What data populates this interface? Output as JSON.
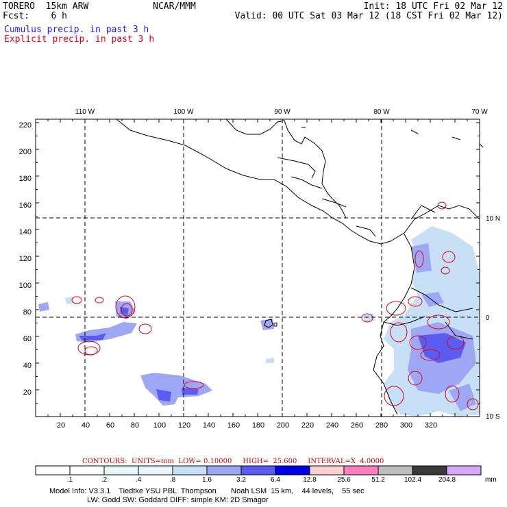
{
  "header": {
    "model": "TORERO  15km ARW",
    "org": "NCAR/MMM",
    "fcst": "Fcst:    6 h",
    "init": "Init: 18 UTC Fri 02 Mar 12",
    "valid": "Valid: 00 UTC Sat 03 Mar 12 (18 CST Fri 02 Mar 12)"
  },
  "legend": {
    "cumulus": "Cumulus precip. in past 3 h",
    "explicit": "Explicit precip. in past 3 h"
  },
  "map": {
    "x_ticks": [
      "20",
      "40",
      "60",
      "80",
      "100",
      "120",
      "140",
      "160",
      "180",
      "200",
      "220",
      "240",
      "260",
      "280",
      "300",
      "320"
    ],
    "y_ticks": [
      "20",
      "40",
      "60",
      "80",
      "100",
      "120",
      "140",
      "160",
      "180",
      "200",
      "220"
    ],
    "lon_labels": [
      "110 W",
      "100 W",
      "90 W",
      "80 W",
      "70 W"
    ],
    "lat_labels": [
      "10 N",
      "0",
      "10 S"
    ]
  },
  "contours_info": "CONTOURS:  UNITS=mm  LOW= 0.10000     HIGH=  25.600     INTERVAL=X  4.0000",
  "colorbar": {
    "labels": [
      ".1",
      ".2",
      ".4",
      ".8",
      "1.6",
      "3.2",
      "6.4",
      "12.8",
      "25.6",
      "51.2",
      "102.4",
      "204.8"
    ],
    "unit": "mm",
    "colors": [
      "#ffffff",
      "#ffffff",
      "#e6f7f7",
      "#e8f5fd",
      "#c8e0f6",
      "#9ea7f3",
      "#5a5cf0",
      "#0000e6",
      "#ffd0d0",
      "#ff80c0",
      "#bdbdbd",
      "#3a3a3a",
      "#d8a8ff"
    ]
  },
  "model_info": {
    "line1": "Model Info: V3.3.1    Tiedtke YSU PBL  Thompson       Noah LSM  15 km,    44 levels,    55 sec",
    "line2": "LW: Godd SW: Goddard DIFF: simple KM: 2D Smagor"
  }
}
